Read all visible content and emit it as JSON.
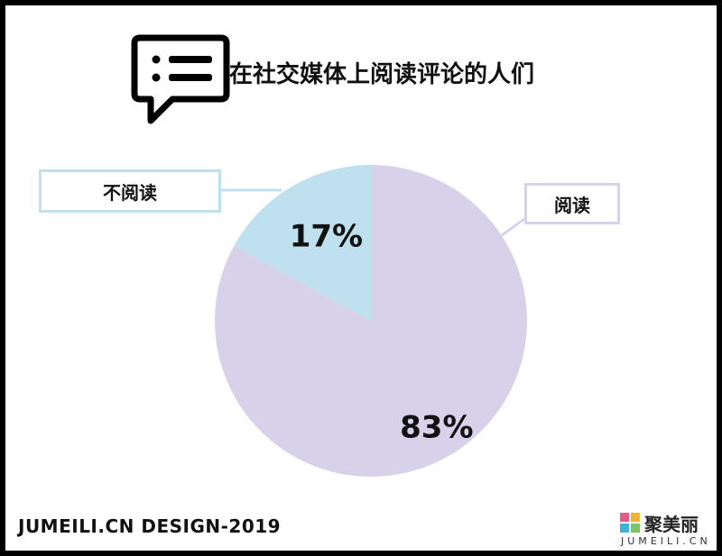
{
  "chart_data": {
    "type": "pie",
    "title": "在社交媒体上阅读评论的人们",
    "categories": [
      "不阅读",
      "阅读"
    ],
    "values": [
      17,
      83
    ],
    "value_labels": [
      "17%",
      "83%"
    ],
    "colors": [
      "#bfe0ee",
      "#d8d1ea"
    ]
  },
  "legend": {
    "left_label": "不阅读",
    "right_label": "阅读",
    "border_color": "#bfe0ee"
  },
  "footer": {
    "credit": "JUMEILI.CN DESIGN-2019",
    "logo_name": "聚美丽",
    "logo_sub": "JUMEILI.CN"
  },
  "icons": {
    "header_icon": "comment-list-icon"
  }
}
